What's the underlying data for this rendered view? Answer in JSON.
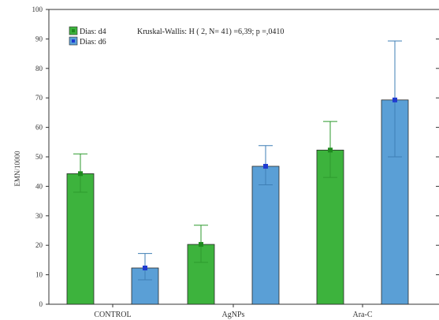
{
  "chart_data": {
    "type": "bar",
    "categories": [
      "CONTROL",
      "AgNPs",
      "Ara-C"
    ],
    "ylabel": "EMN/10000",
    "xlabel": "",
    "ylim": [
      0,
      100
    ],
    "yticks": [
      0,
      10,
      20,
      30,
      40,
      50,
      60,
      70,
      80,
      90,
      100
    ],
    "grid": false,
    "legend_position": "top-left",
    "annotation": "Kruskal-Wallis: H ( 2, N= 41) =6,39; p =,0410",
    "series": [
      {
        "name": "Dias: d4",
        "color": "#3db33d",
        "marker_color": "#1e8a1e",
        "values": [
          44.3,
          20.3,
          52.3
        ],
        "error_low": [
          38,
          14.2,
          43
        ],
        "error_high": [
          51,
          26.8,
          62
        ]
      },
      {
        "name": "Dias: d6",
        "color": "#5a9fd6",
        "marker_color": "#1f3bd0",
        "values": [
          12.3,
          46.8,
          69.3
        ],
        "error_low": [
          8.3,
          40.5,
          50
        ],
        "error_high": [
          17.2,
          53.8,
          89.3
        ]
      }
    ]
  }
}
